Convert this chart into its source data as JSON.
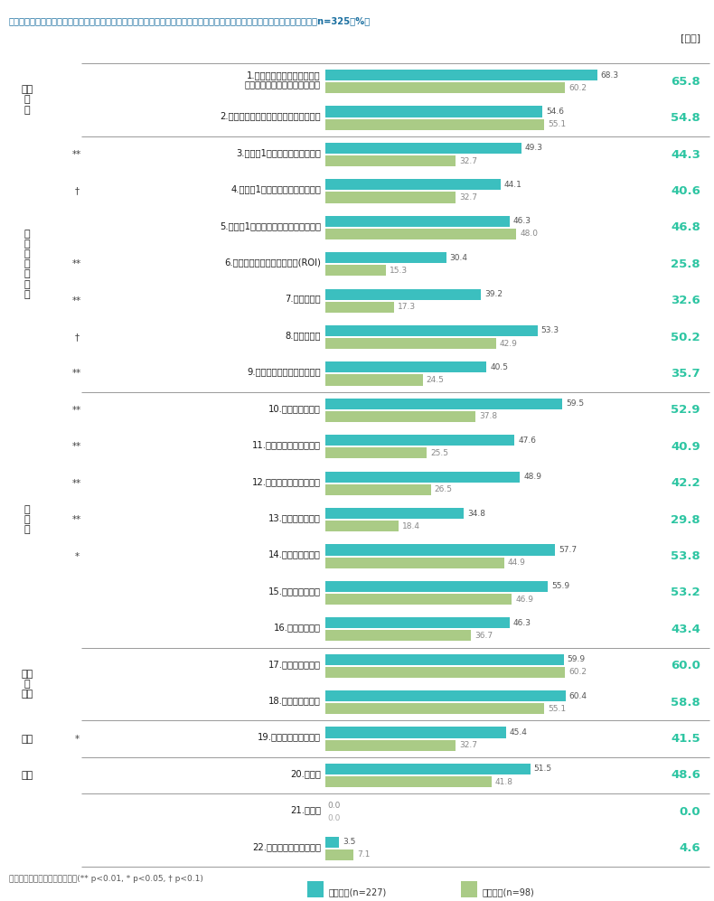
{
  "title": "次の指標のうち、お勤めの会社で「現在把握しているもの」について、あてはまるものをすべてお選びください。〈複数回答／n=325／%〉",
  "zentai_label": "[全体]",
  "categories": [
    "1.従業員エンゲージメント・\n従業員満足度・コミットメント",
    "2.経営・リーダーシップに対する信頼度",
    "3.従業員1人当たりの教育研修費",
    "4.従業員1人当たりの教育研修時間",
    "5.従業員1人当たりの売上あるいは利益",
    "6.教育投資に対するリターン(ROI)",
    "7.労働分配率",
    "8.総額人件費",
    "9.同業他社に対する給与水準",
    "10.女性管理職比率",
    "11.女性の育児休業取得率",
    "12.男性の育児休業取得率",
    "13.男女間賃金格差",
    "14.社員の年齢構成",
    "15.社員の平均年齢",
    "16.中途採用比率",
    "17.時間外労働時間",
    "18.有給休暇取得率",
    "19.採用計画の達成状況",
    "20.離職率",
    "21.その他",
    "22.あてはまるものはない"
  ],
  "honsha": [
    68.3,
    54.6,
    49.3,
    44.1,
    46.3,
    30.4,
    39.2,
    53.3,
    40.5,
    59.5,
    47.6,
    48.9,
    34.8,
    57.7,
    55.9,
    46.3,
    59.9,
    60.4,
    45.4,
    51.5,
    0.0,
    3.5
  ],
  "bumon": [
    60.2,
    55.1,
    32.7,
    32.7,
    48.0,
    15.3,
    17.3,
    42.9,
    24.5,
    37.8,
    25.5,
    26.5,
    18.4,
    44.9,
    46.9,
    36.7,
    60.2,
    55.1,
    32.7,
    41.8,
    0.0,
    7.1
  ],
  "zentai": [
    65.8,
    54.8,
    44.3,
    40.6,
    46.8,
    25.8,
    32.6,
    50.2,
    35.7,
    52.9,
    40.9,
    42.2,
    29.8,
    53.8,
    53.2,
    43.4,
    60.0,
    58.8,
    41.5,
    48.6,
    0.0,
    4.6
  ],
  "significance": [
    "",
    "",
    "**",
    "†",
    "",
    "**",
    "**",
    "†",
    "**",
    "**",
    "**",
    "**",
    "**",
    "*",
    "",
    "",
    "",
    "",
    "*",
    "",
    "",
    ""
  ],
  "group_label_configs": [
    {
      "label": "働き\nが\nい",
      "start": 0,
      "end": 1
    },
    {
      "label": "生\n産\n性\n・\nコ\nス\nト",
      "start": 2,
      "end": 8
    },
    {
      "label": "多\n様\n性",
      "start": 9,
      "end": 15
    },
    {
      "label": "健康\n・\n安全",
      "start": 16,
      "end": 17
    },
    {
      "label": "採用",
      "start": 18,
      "end": 18
    },
    {
      "label": "離職",
      "start": 19,
      "end": 19
    }
  ],
  "separators_before": [
    0,
    2,
    9,
    16,
    18,
    19,
    20
  ],
  "last_separator_after": 21,
  "honsha_color": "#3BBFBF",
  "bumon_color": "#AACB86",
  "zentai_color": "#2DC5A2",
  "max_val": 75,
  "footnote": "統計的に有意差のある項目に印(** p<0.01, * p<0.05, † p<0.1)",
  "legend_honsha": "本社人事(n=227)",
  "legend_bumon": "部門人事(n=98)"
}
